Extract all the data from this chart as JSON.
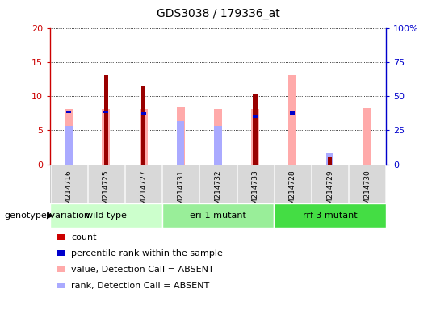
{
  "title": "GDS3038 / 179336_at",
  "samples": [
    "GSM214716",
    "GSM214725",
    "GSM214727",
    "GSM214731",
    "GSM214732",
    "GSM214733",
    "GSM214728",
    "GSM214729",
    "GSM214730"
  ],
  "groups": [
    {
      "name": "wild type",
      "indices": [
        0,
        1,
        2
      ],
      "color": "#ccffcc"
    },
    {
      "name": "eri-1 mutant",
      "indices": [
        3,
        4,
        5
      ],
      "color": "#99ee99"
    },
    {
      "name": "rrf-3 mutant",
      "indices": [
        6,
        7,
        8
      ],
      "color": "#44dd44"
    }
  ],
  "count": [
    null,
    13.1,
    11.4,
    null,
    null,
    10.4,
    null,
    1.0,
    null
  ],
  "percentile_rank": [
    7.7,
    7.7,
    7.4,
    null,
    null,
    7.0,
    7.5,
    null,
    null
  ],
  "value_absent": [
    8.1,
    8.1,
    8.1,
    8.4,
    8.1,
    8.1,
    13.1,
    null,
    8.2
  ],
  "rank_absent": [
    5.6,
    null,
    null,
    6.3,
    5.6,
    null,
    null,
    1.6,
    null
  ],
  "ylim_left": [
    0,
    20
  ],
  "ylim_right": [
    0,
    100
  ],
  "yticks_left": [
    0,
    5,
    10,
    15,
    20
  ],
  "yticks_right": [
    0,
    25,
    50,
    75,
    100
  ],
  "yticklabels_right": [
    "0",
    "25",
    "50",
    "75",
    "100%"
  ],
  "left_axis_color": "#cc0000",
  "right_axis_color": "#0000cc",
  "count_color": "#990000",
  "percentile_color": "#0000cc",
  "value_absent_color": "#ffaaaa",
  "rank_absent_color": "#aaaaff",
  "group_label": "genotype/variation",
  "legend_items": [
    {
      "color": "#cc0000",
      "label": "count"
    },
    {
      "color": "#0000cc",
      "label": "percentile rank within the sample"
    },
    {
      "color": "#ffaaaa",
      "label": "value, Detection Call = ABSENT"
    },
    {
      "color": "#aaaaff",
      "label": "rank, Detection Call = ABSENT"
    }
  ],
  "xtick_bg_color": "#cccccc",
  "plot_bg_color": "#ffffff"
}
